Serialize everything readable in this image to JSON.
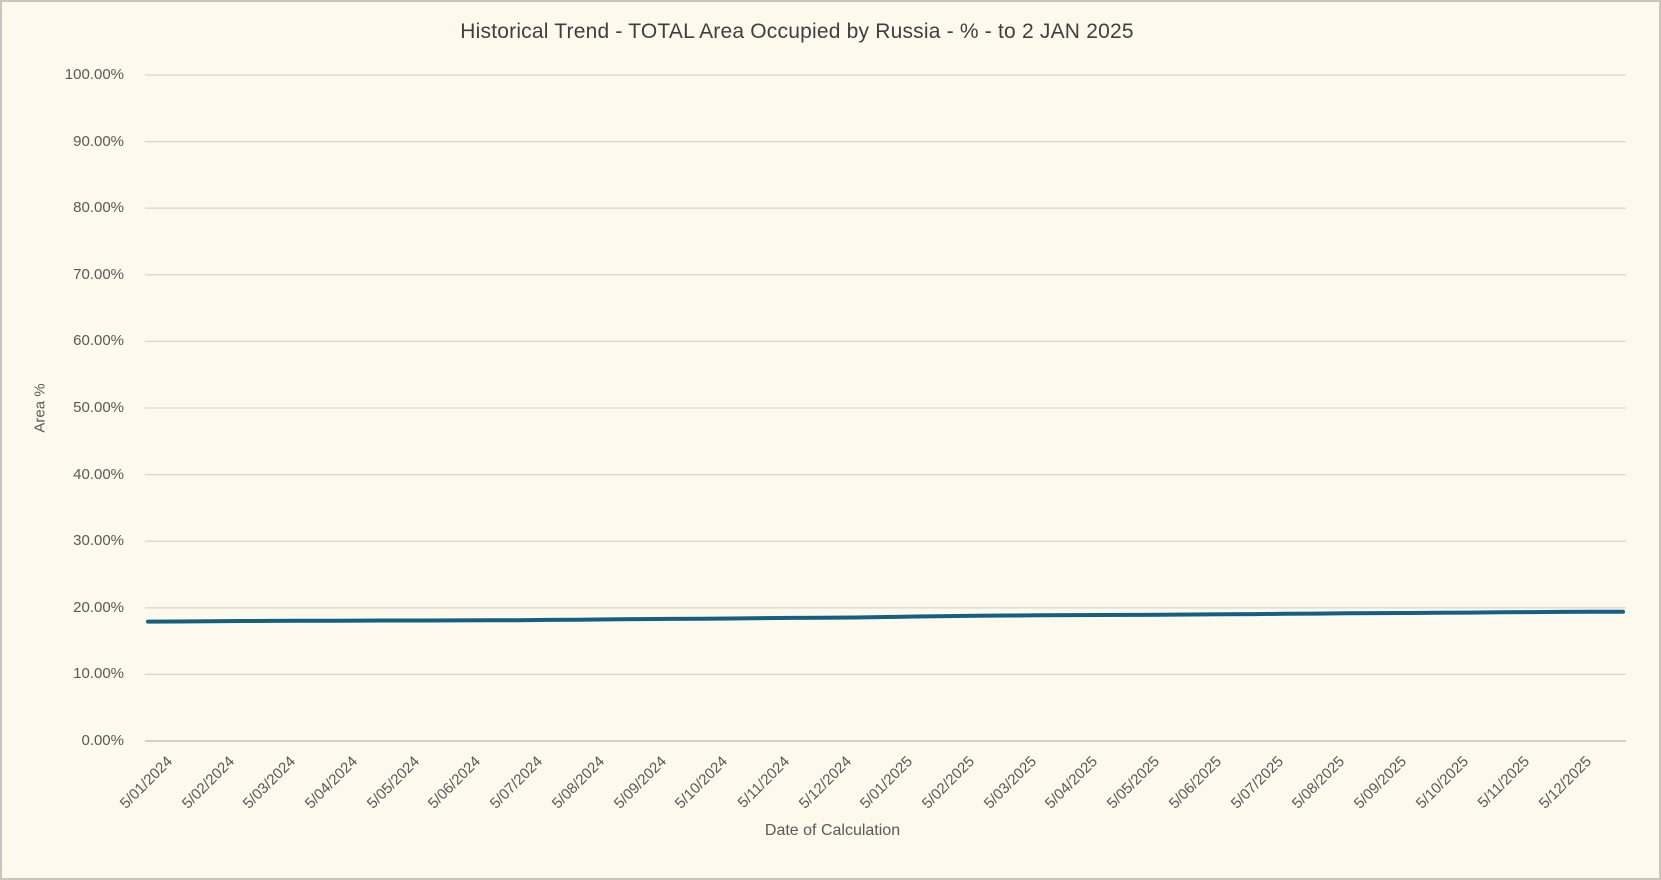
{
  "window": {
    "background_color": "#fdf9ec",
    "border_color": "#c9c6c0"
  },
  "chart_data": {
    "type": "line",
    "title": "Historical Trend - TOTAL Area Occupied by Russia - % - to 2 JAN 2025",
    "xlabel": "Date of Calculation",
    "ylabel": "Area %",
    "ylim": [
      0,
      100
    ],
    "grid": true,
    "legend_position": "none",
    "gridline_color": "#dbd8d3",
    "axis_line_color": "#c4c1bc",
    "y_tick_labels": [
      "0.00%",
      "10.00%",
      "20.00%",
      "30.00%",
      "40.00%",
      "50.00%",
      "60.00%",
      "70.00%",
      "80.00%",
      "90.00%",
      "100.00%"
    ],
    "x_tick_labels": [
      "5/01/2024",
      "5/02/2024",
      "5/03/2024",
      "5/04/2024",
      "5/05/2024",
      "5/06/2024",
      "5/07/2024",
      "5/08/2024",
      "5/09/2024",
      "5/10/2024",
      "5/11/2024",
      "5/12/2024",
      "5/01/2025",
      "5/02/2025",
      "5/03/2025",
      "5/04/2025",
      "5/05/2025",
      "5/06/2025",
      "5/07/2025",
      "5/08/2025",
      "5/09/2025",
      "5/10/2025",
      "5/11/2025",
      "5/12/2025"
    ],
    "series": [
      {
        "color": "#156082",
        "values": [
          17.93,
          17.95,
          17.98,
          18.02,
          18.04,
          18.05,
          18.06,
          18.08,
          18.1,
          18.1,
          18.11,
          18.12,
          18.14,
          18.18,
          18.22,
          18.26,
          18.3,
          18.33,
          18.37,
          18.4,
          18.45,
          18.49,
          18.52,
          18.55,
          18.62,
          18.7,
          18.76,
          18.81,
          18.85,
          18.88,
          18.9,
          18.92,
          18.94,
          18.96,
          18.99,
          19.03,
          19.06,
          19.1,
          19.13,
          19.17,
          19.2,
          19.22,
          19.25,
          19.28,
          19.32,
          19.36,
          19.39,
          19.4,
          19.42
        ]
      }
    ]
  }
}
